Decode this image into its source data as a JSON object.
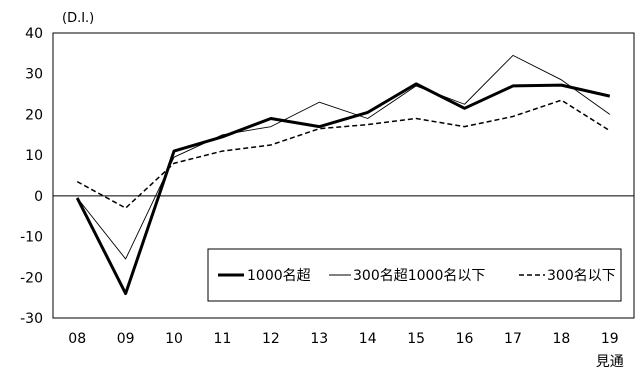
{
  "chart_data": {
    "type": "line",
    "unit_label": "(D.I.)",
    "categories": [
      "08",
      "09",
      "10",
      "11",
      "12",
      "13",
      "14",
      "15",
      "16",
      "17",
      "18",
      "19"
    ],
    "category_sublabel": {
      "index": 11,
      "text": "見通"
    },
    "ylim": [
      -30,
      40
    ],
    "yticks": [
      -30,
      -20,
      -10,
      0,
      10,
      20,
      30,
      40
    ],
    "grid": false,
    "legend_position": "bottom-right",
    "series": [
      {
        "name": "1000名超",
        "style": "thick",
        "color": "#000000",
        "values": [
          -0.5,
          -24,
          11,
          14.5,
          19,
          17,
          20.5,
          27.5,
          21.5,
          27,
          27.2,
          24.5
        ]
      },
      {
        "name": "300名超1000名以下",
        "style": "thin",
        "color": "#000000",
        "values": [
          -0.5,
          -15.5,
          9.5,
          15,
          17,
          23,
          19,
          27,
          22.5,
          34.5,
          28.5,
          20
        ]
      },
      {
        "name": "300名以下",
        "style": "dashed",
        "color": "#000000",
        "values": [
          3.5,
          -3,
          8,
          11,
          12.5,
          16.5,
          17.5,
          19,
          17,
          19.5,
          23.5,
          16
        ]
      }
    ]
  }
}
